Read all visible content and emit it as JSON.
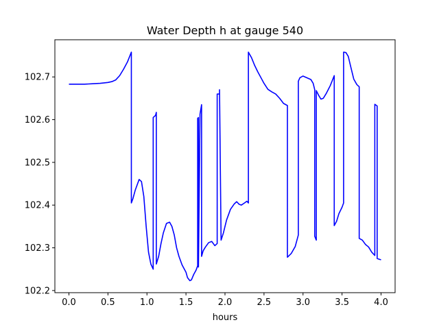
{
  "chart_data": {
    "type": "line",
    "title": "Water Depth h at gauge 540",
    "xlabel": "hours",
    "ylabel": "",
    "xlim": [
      -0.18,
      4.18
    ],
    "ylim": [
      102.195,
      102.787
    ],
    "grid": false,
    "xticks": [
      0.0,
      0.5,
      1.0,
      1.5,
      2.0,
      2.5,
      3.0,
      3.5,
      4.0
    ],
    "xtick_labels": [
      "0.0",
      "0.5",
      "1.0",
      "1.5",
      "2.0",
      "2.5",
      "3.0",
      "3.5",
      "4.0"
    ],
    "yticks": [
      102.2,
      102.3,
      102.4,
      102.5,
      102.6,
      102.7
    ],
    "ytick_labels": [
      "102.2",
      "102.3",
      "102.4",
      "102.5",
      "102.6",
      "102.7"
    ],
    "series": [
      {
        "color": "#0000ff",
        "x": [
          0.0,
          0.1,
          0.2,
          0.3,
          0.4,
          0.5,
          0.55,
          0.6,
          0.65,
          0.7,
          0.75,
          0.8,
          0.8,
          0.82,
          0.85,
          0.9,
          0.93,
          0.96,
          0.99,
          1.02,
          1.05,
          1.08,
          1.08,
          1.11,
          1.12,
          1.12,
          1.15,
          1.18,
          1.21,
          1.25,
          1.29,
          1.32,
          1.35,
          1.38,
          1.41,
          1.45,
          1.5,
          1.52,
          1.55,
          1.57,
          1.6,
          1.63,
          1.65,
          1.65,
          1.66,
          1.66,
          1.68,
          1.7,
          1.7,
          1.72,
          1.75,
          1.79,
          1.83,
          1.87,
          1.9,
          1.9,
          1.93,
          1.93,
          1.95,
          1.98,
          2.02,
          2.07,
          2.12,
          2.15,
          2.18,
          2.21,
          2.25,
          2.28,
          2.3,
          2.3,
          2.34,
          2.38,
          2.42,
          2.5,
          2.55,
          2.6,
          2.65,
          2.7,
          2.75,
          2.8,
          2.8,
          2.85,
          2.9,
          2.94,
          2.94,
          2.96,
          3.0,
          3.05,
          3.1,
          3.13,
          3.15,
          3.15,
          3.17,
          3.17,
          3.2,
          3.23,
          3.26,
          3.3,
          3.35,
          3.4,
          3.4,
          3.43,
          3.46,
          3.5,
          3.52,
          3.52,
          3.55,
          3.58,
          3.61,
          3.65,
          3.69,
          3.72,
          3.72,
          3.76,
          3.8,
          3.84,
          3.88,
          3.92,
          3.92,
          3.95,
          3.95,
          3.98,
          4.0
        ],
        "y": [
          102.683,
          102.683,
          102.683,
          102.684,
          102.685,
          102.687,
          102.689,
          102.693,
          102.703,
          102.718,
          102.735,
          102.758,
          102.405,
          102.415,
          102.435,
          102.46,
          102.455,
          102.42,
          102.35,
          102.29,
          102.262,
          102.25,
          102.605,
          102.61,
          102.617,
          102.262,
          102.28,
          102.31,
          102.335,
          102.357,
          102.36,
          102.35,
          102.33,
          102.3,
          102.28,
          102.26,
          102.243,
          102.23,
          102.223,
          102.225,
          102.238,
          102.248,
          102.258,
          102.603,
          102.605,
          102.255,
          102.613,
          102.635,
          102.28,
          102.293,
          102.302,
          102.312,
          102.315,
          102.305,
          102.31,
          102.66,
          102.66,
          102.67,
          102.318,
          102.335,
          102.365,
          102.39,
          102.403,
          102.408,
          102.402,
          102.4,
          102.405,
          102.409,
          102.405,
          102.758,
          102.745,
          102.727,
          102.712,
          102.685,
          102.671,
          102.665,
          102.66,
          102.65,
          102.638,
          102.633,
          102.278,
          102.287,
          102.303,
          102.33,
          102.69,
          102.698,
          102.702,
          102.698,
          102.694,
          102.685,
          102.67,
          102.327,
          102.318,
          102.668,
          102.657,
          102.648,
          102.65,
          102.662,
          102.68,
          102.703,
          102.352,
          102.362,
          102.38,
          102.395,
          102.405,
          102.758,
          102.757,
          102.748,
          102.725,
          102.695,
          102.682,
          102.677,
          102.322,
          102.318,
          102.308,
          102.302,
          102.29,
          102.282,
          102.636,
          102.632,
          102.275,
          102.273,
          102.272
        ]
      }
    ]
  }
}
